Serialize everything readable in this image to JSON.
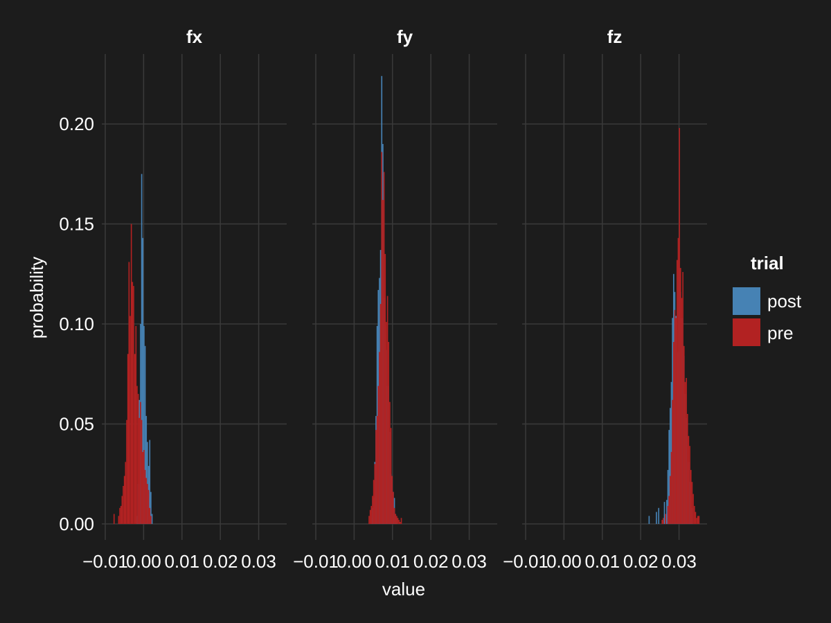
{
  "chart_data": {
    "type": "bar",
    "xlabel": "value",
    "ylabel": "probability",
    "ylim": [
      -0.008,
      0.235
    ],
    "xlim": [
      -0.0109,
      0.0373
    ],
    "x_ticks": [
      -0.01,
      0.0,
      0.01,
      0.02,
      0.03
    ],
    "x_tick_labels": [
      "−0.01",
      "0.00",
      "0.01",
      "0.02",
      "0.03"
    ],
    "y_ticks": [
      0.0,
      0.05,
      0.1,
      0.15,
      0.2
    ],
    "y_tick_labels": [
      "0.00",
      "0.05",
      "0.10",
      "0.15",
      "0.20"
    ],
    "grid": true,
    "legend": {
      "title": "trial",
      "position": "right"
    },
    "colors": {
      "post": "#4682b4",
      "pre": "#b22222",
      "background": "#1c1c1c",
      "grid": "#3a3a3a",
      "text": "#ffffff"
    },
    "panels": [
      {
        "title": "fx",
        "series": [
          {
            "name": "post",
            "bin_width": 0.0003,
            "x": [
              -0.0017,
              -0.0014,
              -0.0011,
              -0.0008,
              -0.0005,
              -0.0002,
              0.0001,
              0.0004,
              0.0007,
              0.001,
              0.0013,
              0.0016,
              0.0019,
              0.0022
            ],
            "values": [
              0.004,
              0.02,
              0.062,
              0.1,
              0.175,
              0.143,
              0.099,
              0.089,
              0.054,
              0.041,
              0.029,
              0.042,
              0.016,
              0.005
            ]
          },
          {
            "name": "pre",
            "bin_width": 0.0003,
            "x": [
              -0.0077,
              -0.0065,
              -0.0062,
              -0.0059,
              -0.0056,
              -0.0053,
              -0.005,
              -0.0047,
              -0.0044,
              -0.0041,
              -0.0038,
              -0.0035,
              -0.0032,
              -0.0029,
              -0.0026,
              -0.0023,
              -0.002,
              -0.0017,
              -0.0014,
              -0.0011,
              -0.0008,
              -0.0005,
              -0.0002,
              0.0001,
              0.0004,
              0.0007,
              0.001,
              0.0013,
              0.0016,
              0.0019
            ],
            "values": [
              0.005,
              0.004,
              0.008,
              0.009,
              0.014,
              0.019,
              0.024,
              0.031,
              0.052,
              0.085,
              0.131,
              0.104,
              0.15,
              0.121,
              0.119,
              0.085,
              0.099,
              0.069,
              0.065,
              0.053,
              0.061,
              0.052,
              0.036,
              0.037,
              0.027,
              0.023,
              0.02,
              0.017,
              0.008,
              0.004
            ]
          }
        ]
      },
      {
        "title": "fy",
        "series": [
          {
            "name": "post",
            "bin_width": 0.0003,
            "x": [
              0.0045,
              0.0048,
              0.0051,
              0.0054,
              0.0057,
              0.006,
              0.0063,
              0.0066,
              0.0069,
              0.0072,
              0.0075,
              0.0078,
              0.0081,
              0.0084,
              0.0087,
              0.009,
              0.0093,
              0.0096,
              0.0099,
              0.0102,
              0.0105,
              0.0108,
              0.0111
            ],
            "values": [
              0.003,
              0.008,
              0.013,
              0.031,
              0.054,
              0.099,
              0.117,
              0.123,
              0.137,
              0.224,
              0.19,
              0.113,
              0.099,
              0.087,
              0.069,
              0.057,
              0.046,
              0.025,
              0.022,
              0.016,
              0.013,
              0.005,
              0.003
            ]
          },
          {
            "name": "pre",
            "bin_width": 0.0003,
            "x": [
              0.0039,
              0.0042,
              0.0045,
              0.0048,
              0.0051,
              0.0054,
              0.0057,
              0.006,
              0.0063,
              0.0066,
              0.0069,
              0.0072,
              0.0075,
              0.0078,
              0.0081,
              0.0084,
              0.0087,
              0.009,
              0.0093,
              0.0096,
              0.0099,
              0.0102,
              0.0105,
              0.0108,
              0.0111,
              0.0114,
              0.0117,
              0.012,
              0.0123
            ],
            "values": [
              0.004,
              0.007,
              0.009,
              0.014,
              0.022,
              0.03,
              0.047,
              0.054,
              0.069,
              0.086,
              0.11,
              0.186,
              0.162,
              0.176,
              0.135,
              0.101,
              0.114,
              0.091,
              0.061,
              0.048,
              0.024,
              0.016,
              0.008,
              0.005,
              0.004,
              0.003,
              0.002,
              0.001,
              0.003
            ]
          }
        ]
      },
      {
        "title": "fz",
        "series": [
          {
            "name": "post",
            "bin_width": 0.0003,
            "x": [
              0.0222,
              0.0241,
              0.0247,
              0.0262,
              0.0268,
              0.0271,
              0.0274,
              0.0277,
              0.028,
              0.0283,
              0.0286,
              0.0289,
              0.0292,
              0.0295,
              0.0298,
              0.0301,
              0.0304,
              0.0307,
              0.031,
              0.0313,
              0.0316,
              0.0319,
              0.0322,
              0.0325,
              0.0328,
              0.0331,
              0.0334
            ],
            "values": [
              0.004,
              0.006,
              0.008,
              0.011,
              0.012,
              0.027,
              0.047,
              0.058,
              0.071,
              0.103,
              0.125,
              0.116,
              0.104,
              0.097,
              0.086,
              0.128,
              0.116,
              0.103,
              0.089,
              0.084,
              0.065,
              0.053,
              0.044,
              0.031,
              0.021,
              0.014,
              0.008
            ]
          },
          {
            "name": "pre",
            "bin_width": 0.0003,
            "x": [
              0.0256,
              0.0259,
              0.0265,
              0.0271,
              0.0274,
              0.0277,
              0.028,
              0.0283,
              0.0286,
              0.0289,
              0.0292,
              0.0295,
              0.0298,
              0.0301,
              0.0304,
              0.0307,
              0.031,
              0.0313,
              0.0316,
              0.0319,
              0.0322,
              0.0325,
              0.0328,
              0.0331,
              0.0334,
              0.0337,
              0.034,
              0.0343,
              0.0346,
              0.0349,
              0.0352
            ],
            "values": [
              0.002,
              0.003,
              0.005,
              0.009,
              0.014,
              0.024,
              0.036,
              0.062,
              0.091,
              0.107,
              0.103,
              0.132,
              0.143,
              0.198,
              0.128,
              0.113,
              0.126,
              0.089,
              0.071,
              0.073,
              0.055,
              0.044,
              0.039,
              0.027,
              0.021,
              0.015,
              0.009,
              0.006,
              0.003,
              0.004,
              0.004
            ]
          }
        ]
      }
    ]
  }
}
